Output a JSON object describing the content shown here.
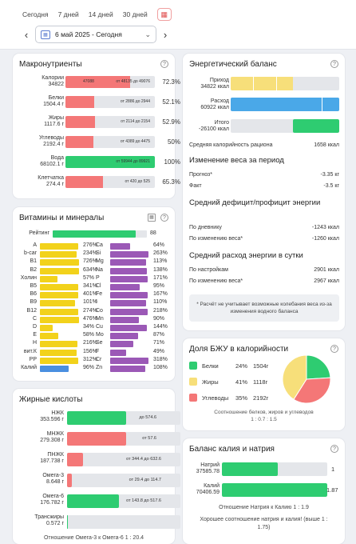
{
  "periods": [
    "Сегодня",
    "7 дней",
    "14 дней",
    "30 дней"
  ],
  "date_range": "6 май 2025 - Сегодня",
  "macros": {
    "title": "Макронутриенты",
    "rows": [
      {
        "name": "Калории",
        "value": "34822",
        "extra": "47088",
        "range": "от 48135 до 49076",
        "pct": "72.3%",
        "color": "#f47777",
        "fill": 0.72
      },
      {
        "name": "Белки",
        "value": "1504.4 г",
        "range": "от 2886 до 2944",
        "pct": "52.1%",
        "color": "#f47777",
        "fill": 0.32
      },
      {
        "name": "Жиры",
        "value": "1117.6 г",
        "range": "от 2114 до 2154",
        "pct": "52.9%",
        "color": "#f47777",
        "fill": 0.33
      },
      {
        "name": "Углеводы",
        "value": "2192.4 г",
        "range": "от 4389 до 4475",
        "pct": "50%",
        "color": "#f47777",
        "fill": 0.31
      },
      {
        "name": "Вода",
        "value": "68102.1 г",
        "range": "от 59944 до 89921",
        "pct": "100%",
        "color": "#2ecc71",
        "fill": 1.0
      },
      {
        "name": "Клетчатка",
        "value": "274.4 г",
        "range": "от 420 до 525",
        "pct": "65.3%",
        "color": "#f47777",
        "fill": 0.42
      }
    ]
  },
  "vitamins": {
    "title": "Витамины и минералы",
    "rating_label": "Рейтинг",
    "rating_value": "88",
    "rating_fill": 0.88,
    "left": [
      {
        "name": "A",
        "pct": "276%",
        "fill": 0.92,
        "color": "#f2d21b"
      },
      {
        "name": "b-car",
        "pct": "234%",
        "fill": 0.88,
        "color": "#f2d21b"
      },
      {
        "name": "B1",
        "pct": "726%",
        "fill": 0.95,
        "color": "#f2d21b"
      },
      {
        "name": "B2",
        "pct": "634%",
        "fill": 0.95,
        "color": "#f2d21b"
      },
      {
        "name": "Холин",
        "pct": "57%",
        "fill": 0.42,
        "color": "#f2d21b"
      },
      {
        "name": "B5",
        "pct": "341%",
        "fill": 0.92,
        "color": "#f2d21b"
      },
      {
        "name": "B6",
        "pct": "401%",
        "fill": 0.93,
        "color": "#f2d21b"
      },
      {
        "name": "B9",
        "pct": "101%",
        "fill": 0.85,
        "color": "#f2d21b"
      },
      {
        "name": "B12",
        "pct": "274%",
        "fill": 0.92,
        "color": "#f2d21b"
      },
      {
        "name": "C",
        "pct": "476%",
        "fill": 0.94,
        "color": "#f2d21b"
      },
      {
        "name": "D",
        "pct": "34%",
        "fill": 0.3,
        "color": "#f2d21b"
      },
      {
        "name": "E",
        "pct": "58%",
        "fill": 0.44,
        "color": "#f2d21b"
      },
      {
        "name": "H",
        "pct": "216%",
        "fill": 0.9,
        "color": "#f2d21b"
      },
      {
        "name": "вит.К",
        "pct": "156%",
        "fill": 0.88,
        "color": "#f2d21b"
      },
      {
        "name": "PP",
        "pct": "312%",
        "fill": 0.92,
        "color": "#f2d21b"
      },
      {
        "name": "Калий",
        "pct": "96%",
        "fill": 0.7,
        "color": "#4a8fe0"
      }
    ],
    "right": [
      {
        "name": "Ca",
        "pct": "64%",
        "fill": 0.48,
        "color": "#9b59b6"
      },
      {
        "name": "Si",
        "pct": "263%",
        "fill": 0.92,
        "color": "#9b59b6"
      },
      {
        "name": "Mg",
        "pct": "113%",
        "fill": 0.86,
        "color": "#9b59b6"
      },
      {
        "name": "Na",
        "pct": "138%",
        "fill": 0.88,
        "color": "#9b59b6"
      },
      {
        "name": "P",
        "pct": "171%",
        "fill": 0.9,
        "color": "#9b59b6"
      },
      {
        "name": "Cl",
        "pct": "95%",
        "fill": 0.72,
        "color": "#9b59b6"
      },
      {
        "name": "Fe",
        "pct": "167%",
        "fill": 0.9,
        "color": "#9b59b6"
      },
      {
        "name": "I",
        "pct": "110%",
        "fill": 0.86,
        "color": "#9b59b6"
      },
      {
        "name": "Co",
        "pct": "218%",
        "fill": 0.9,
        "color": "#9b59b6"
      },
      {
        "name": "Mn",
        "pct": "90%",
        "fill": 0.7,
        "color": "#9b59b6"
      },
      {
        "name": "Cu",
        "pct": "144%",
        "fill": 0.88,
        "color": "#9b59b6"
      },
      {
        "name": "Mo",
        "pct": "87%",
        "fill": 0.68,
        "color": "#9b59b6"
      },
      {
        "name": "Se",
        "pct": "71%",
        "fill": 0.55,
        "color": "#9b59b6"
      },
      {
        "name": "F",
        "pct": "49%",
        "fill": 0.38,
        "color": "#9b59b6"
      },
      {
        "name": "Cr",
        "pct": "318%",
        "fill": 0.92,
        "color": "#9b59b6"
      },
      {
        "name": "Zn",
        "pct": "108%",
        "fill": 0.84,
        "color": "#9b59b6"
      }
    ]
  },
  "fatty": {
    "title": "Жирные кислоты",
    "rows": [
      {
        "name": "НЖК",
        "value": "353.596 г",
        "range": "до 574.6",
        "color": "#2ecc71",
        "fill": 0.52
      },
      {
        "name": "МНЖК",
        "value": "279.308 г",
        "range": "от 57.6",
        "color": "#f47777",
        "fill": 0.52
      },
      {
        "name": "ПНЖК",
        "value": "187.738 г",
        "range": "от 344.4 до 632.6",
        "color": "#f47777",
        "fill": 0.14
      },
      {
        "name": "Омега-3",
        "value": "8.648 г",
        "range": "от 29.4 до 114.7",
        "color": "#f47777",
        "fill": 0.04
      },
      {
        "name": "Омега-6",
        "value": "176.782 г",
        "range": "от 143.8 до 517.6",
        "color": "#2ecc71",
        "fill": 0.46
      },
      {
        "name": "Трансжиры",
        "value": "0.572 г",
        "range": "",
        "color": "#2ecc71",
        "fill": 0.01
      }
    ],
    "ratio": "Отношение Омега-3 к Омега-6 1 : 20.4"
  },
  "energy": {
    "title": "Энергетический баланс",
    "intake_label": "Приход",
    "intake_value": "34822 ккал",
    "intake_fill": 0.57,
    "expense_label": "Расход",
    "expense_value": "60922 ккал",
    "expense_fill": 1.0,
    "total_label": "Итого",
    "total_value": "-26100 ккал",
    "total_fill": 0.43,
    "calories_label": "Средняя калорийность рациона",
    "calories_value": "1658 ккал",
    "weight_title": "Изменение веса за период",
    "forecast_label": "Прогноз*",
    "forecast_value": "-3.35 кг",
    "fact_label": "Факт",
    "fact_value": "-3.5 кг",
    "deficit_title": "Средний дефицит/профицит энергии",
    "diary_label": "По дневнику",
    "diary_value": "-1243 ккал",
    "weightchg_label": "По изменению веса*",
    "weightchg_value": "-1260 ккал",
    "expense_title": "Средний расход энергии в сутки",
    "settings_label": "По настройкам",
    "settings_value": "2901 ккал",
    "weightchg2_label": "По изменению веса*",
    "weightchg2_value": "2967 ккал",
    "note": "* Расчёт не учитывает возможные колебания веса из-за изменения водного баланса"
  },
  "bju": {
    "title": "Доля БЖУ в калорийности",
    "items": [
      {
        "name": "Белки",
        "pct": "24%",
        "grams": "1504г",
        "color": "#2ecc71",
        "share": 0.24
      },
      {
        "name": "Жиры",
        "pct": "41%",
        "grams": "1118г",
        "color": "#f7df7a",
        "share": 0.41
      },
      {
        "name": "Углеводы",
        "pct": "35%",
        "grams": "2192г",
        "color": "#f47777",
        "share": 0.35
      }
    ],
    "ratio_text": "Соотношение белков, жиров и углеводов",
    "ratio_value": "1 : 0.7 : 1.5"
  },
  "kna": {
    "title": "Баланс калия и натрия",
    "natrium_label": "Натрий",
    "natrium_value": "37585.78",
    "natrium_num": "1",
    "natrium_fill": 0.53,
    "kalium_label": "Калий",
    "kalium_value": "70406.59",
    "kalium_num": "1.87",
    "kalium_fill": 1.0,
    "ratio": "Отношение Натрия к Калию 1 : 1.9",
    "verdict": "Хорошее соотношение натрия и калия! (выше 1 : 1.75)"
  },
  "colors": {
    "red": "#f47777",
    "green": "#2ecc71",
    "yellow": "#f7df7a",
    "blue": "#4aa8e8"
  }
}
